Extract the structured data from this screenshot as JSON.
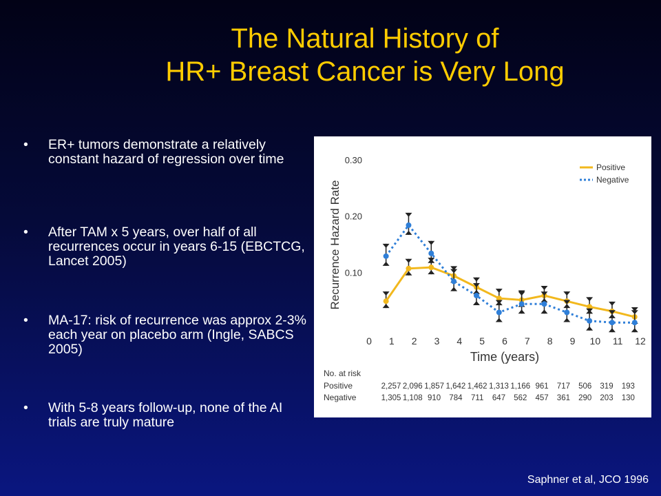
{
  "slide": {
    "title_line1": "The Natural History of",
    "title_line2": "HR+ Breast Cancer is Very Long",
    "bullets": [
      "ER+ tumors demonstrate a relatively constant hazard of regression over time",
      "After TAM x 5 years, over half of all recurrences occur in years 6-15 (EBCTCG, Lancet 2005)",
      "MA-17: risk of recurrence was approx 2-3% each year on placebo arm (Ingle, SABCS 2005)",
      "With 5-8 years follow-up, none of the AI trials are truly mature"
    ],
    "bullet_symbol": "•",
    "citation": "Saphner et al, JCO 1996"
  },
  "chart_data": {
    "type": "line",
    "title": "",
    "xlabel": "Time (years)",
    "ylabel": "Recurrence Hazard Rate",
    "xlim": [
      0,
      12
    ],
    "ylim": [
      0,
      0.3
    ],
    "x_ticks": [
      "0",
      "1",
      "2",
      "3",
      "4",
      "5",
      "6",
      "7",
      "8",
      "9",
      "10",
      "11",
      "12"
    ],
    "y_ticks": [
      "0.10",
      "0.20",
      "0.30"
    ],
    "y_tick_values": [
      0.1,
      0.2,
      0.3
    ],
    "legend_position": "top-right",
    "series": [
      {
        "name": "Positive",
        "color": "#f2b81d",
        "style": "solid",
        "x": [
          0.75,
          1.75,
          2.75,
          3.75,
          4.75,
          5.75,
          6.75,
          7.75,
          8.75,
          9.75,
          10.75,
          11.75
        ],
        "y": [
          0.05,
          0.108,
          0.11,
          0.095,
          0.075,
          0.055,
          0.052,
          0.06,
          0.05,
          0.04,
          0.032,
          0.022
        ]
      },
      {
        "name": "Negative",
        "color": "#2f7fd8",
        "style": "dotted",
        "x": [
          0.75,
          1.75,
          2.75,
          3.75,
          4.75,
          5.75,
          6.75,
          7.75,
          8.75,
          9.75,
          10.75,
          11.75
        ],
        "y": [
          0.13,
          0.185,
          0.135,
          0.085,
          0.06,
          0.03,
          0.045,
          0.045,
          0.03,
          0.015,
          0.012,
          0.012
        ]
      }
    ],
    "at_risk": {
      "title": "No. at risk",
      "rows": [
        {
          "label": "Positive",
          "values": [
            "2,257",
            "2,096",
            "1,857",
            "1,642",
            "1,462",
            "1,313",
            "1,166",
            "961",
            "717",
            "506",
            "319",
            "193"
          ]
        },
        {
          "label": "Negative",
          "values": [
            "1,305",
            "1,108",
            "910",
            "784",
            "711",
            "647",
            "562",
            "457",
            "361",
            "290",
            "203",
            "130"
          ]
        }
      ]
    }
  }
}
